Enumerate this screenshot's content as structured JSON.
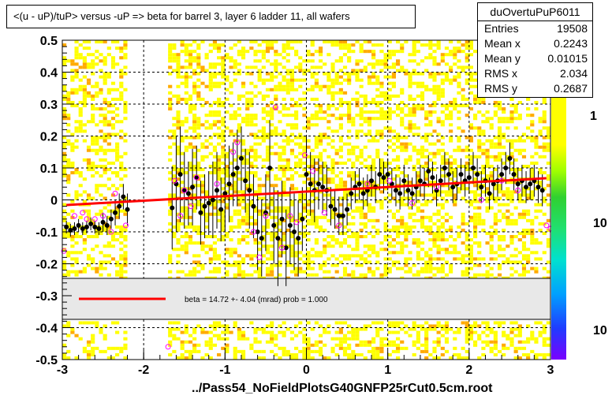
{
  "title": "<(u - uP)/tuP> versus  -uP => beta for barrel 3, layer 6 ladder 11, all wafers",
  "footer": "../Pass54_NoFieldPlotsG40GNFP25rCut0.5cm.root",
  "stats": {
    "name": "duOvertuPuP6011",
    "rows": [
      {
        "label": "Entries",
        "value": "19508"
      },
      {
        "label": "Mean x",
        "value": "0.2243"
      },
      {
        "label": "Mean y",
        "value": "0.01015"
      },
      {
        "label": "RMS x",
        "value": "2.034"
      },
      {
        "label": "RMS y",
        "value": "0.2687"
      }
    ]
  },
  "legend": {
    "text": "beta =   14.72 +-  4.04 (mrad) prob = 1.000"
  },
  "palette_labels": [
    "1",
    "10",
    "10"
  ],
  "colors": {
    "fit_line": "#ff0000",
    "open_marker": "#ff00ff",
    "hist_yellow": "#ffff00",
    "hist_orange": "#ffaa00"
  },
  "chart_data": {
    "type": "scatter",
    "xlim": [
      -3,
      3
    ],
    "ylim": [
      -0.5,
      0.5
    ],
    "x_ticks": [
      "-3",
      "-2",
      "-1",
      "0",
      "1",
      "2",
      "3"
    ],
    "y_ticks": [
      "-0.5",
      "-0.4",
      "-0.3",
      "-0.2",
      "-0.1",
      "0",
      "0.1",
      "0.2",
      "0.3",
      "0.4",
      "0.5"
    ],
    "grid": true,
    "fit_line": {
      "x": [
        -2.95,
        2.95
      ],
      "y": [
        -0.016,
        0.068
      ]
    },
    "profile_points": [
      {
        "x": -2.95,
        "y": -0.085,
        "err": 0.02
      },
      {
        "x": -2.9,
        "y": -0.095,
        "err": 0.02
      },
      {
        "x": -2.85,
        "y": -0.09,
        "err": 0.02
      },
      {
        "x": -2.8,
        "y": -0.08,
        "err": 0.02
      },
      {
        "x": -2.75,
        "y": -0.09,
        "err": 0.02
      },
      {
        "x": -2.7,
        "y": -0.085,
        "err": 0.02
      },
      {
        "x": -2.65,
        "y": -0.075,
        "err": 0.02
      },
      {
        "x": -2.6,
        "y": -0.085,
        "err": 0.02
      },
      {
        "x": -2.55,
        "y": -0.09,
        "err": 0.02
      },
      {
        "x": -2.5,
        "y": -0.07,
        "err": 0.03
      },
      {
        "x": -2.45,
        "y": -0.08,
        "err": 0.03
      },
      {
        "x": -2.4,
        "y": -0.06,
        "err": 0.03
      },
      {
        "x": -2.35,
        "y": -0.04,
        "err": 0.04
      },
      {
        "x": -2.3,
        "y": -0.02,
        "err": 0.04
      },
      {
        "x": -2.25,
        "y": 0.01,
        "err": 0.04
      },
      {
        "x": -2.2,
        "y": -0.03,
        "err": 0.05
      },
      {
        "x": -1.65,
        "y": -0.025,
        "err": 0.13
      },
      {
        "x": -1.6,
        "y": 0.05,
        "err": 0.15
      },
      {
        "x": -1.55,
        "y": 0.08,
        "err": 0.15
      },
      {
        "x": -1.5,
        "y": 0.03,
        "err": 0.12
      },
      {
        "x": -1.45,
        "y": 0.02,
        "err": 0.1
      },
      {
        "x": -1.4,
        "y": 0.04,
        "err": 0.12
      },
      {
        "x": -1.35,
        "y": 0.07,
        "err": 0.1
      },
      {
        "x": -1.3,
        "y": -0.04,
        "err": 0.1
      },
      {
        "x": -1.25,
        "y": -0.02,
        "err": 0.1
      },
      {
        "x": -1.2,
        "y": -0.01,
        "err": 0.1
      },
      {
        "x": -1.15,
        "y": 0.0,
        "err": 0.12
      },
      {
        "x": -1.1,
        "y": 0.03,
        "err": 0.12
      },
      {
        "x": -1.05,
        "y": -0.03,
        "err": 0.1
      },
      {
        "x": -1.0,
        "y": 0.02,
        "err": 0.12
      },
      {
        "x": -0.95,
        "y": 0.05,
        "err": 0.12
      },
      {
        "x": -0.9,
        "y": 0.08,
        "err": 0.1
      },
      {
        "x": -0.85,
        "y": 0.1,
        "err": 0.12
      },
      {
        "x": -0.8,
        "y": 0.13,
        "err": 0.1
      },
      {
        "x": -0.75,
        "y": 0.06,
        "err": 0.1
      },
      {
        "x": -0.7,
        "y": 0.03,
        "err": 0.12
      },
      {
        "x": -0.65,
        "y": -0.02,
        "err": 0.1
      },
      {
        "x": -0.6,
        "y": -0.1,
        "err": 0.12
      },
      {
        "x": -0.55,
        "y": -0.12,
        "err": 0.12
      },
      {
        "x": -0.5,
        "y": -0.04,
        "err": 0.12
      },
      {
        "x": -0.45,
        "y": 0.1,
        "err": 0.15
      },
      {
        "x": -0.4,
        "y": -0.08,
        "err": 0.12
      },
      {
        "x": -0.35,
        "y": -0.12,
        "err": 0.15
      },
      {
        "x": -0.3,
        "y": -0.06,
        "err": 0.12
      },
      {
        "x": -0.25,
        "y": -0.15,
        "err": 0.12
      },
      {
        "x": -0.2,
        "y": -0.08,
        "err": 0.12
      },
      {
        "x": -0.15,
        "y": -0.1,
        "err": 0.12
      },
      {
        "x": -0.1,
        "y": -0.12,
        "err": 0.12
      },
      {
        "x": -0.05,
        "y": -0.06,
        "err": 0.1
      },
      {
        "x": 0.0,
        "y": 0.08,
        "err": 0.12
      },
      {
        "x": 0.05,
        "y": 0.05,
        "err": 0.1
      },
      {
        "x": 0.1,
        "y": 0.03,
        "err": 0.1
      },
      {
        "x": 0.15,
        "y": 0.05,
        "err": 0.08
      },
      {
        "x": 0.2,
        "y": 0.04,
        "err": 0.08
      },
      {
        "x": 0.25,
        "y": 0.03,
        "err": 0.08
      },
      {
        "x": 0.3,
        "y": -0.02,
        "err": 0.06
      },
      {
        "x": 0.35,
        "y": -0.03,
        "err": 0.06
      },
      {
        "x": 0.4,
        "y": -0.05,
        "err": 0.06
      },
      {
        "x": 0.45,
        "y": -0.05,
        "err": 0.06
      },
      {
        "x": 0.5,
        "y": -0.03,
        "err": 0.05
      },
      {
        "x": 0.55,
        "y": 0.02,
        "err": 0.05
      },
      {
        "x": 0.6,
        "y": 0.04,
        "err": 0.05
      },
      {
        "x": 0.65,
        "y": 0.05,
        "err": 0.05
      },
      {
        "x": 0.7,
        "y": 0.02,
        "err": 0.05
      },
      {
        "x": 0.75,
        "y": 0.03,
        "err": 0.05
      },
      {
        "x": 0.8,
        "y": 0.06,
        "err": 0.05
      },
      {
        "x": 0.85,
        "y": 0.04,
        "err": 0.05
      },
      {
        "x": 0.9,
        "y": 0.08,
        "err": 0.05
      },
      {
        "x": 0.95,
        "y": 0.07,
        "err": 0.05
      },
      {
        "x": 1.0,
        "y": 0.08,
        "err": 0.05
      },
      {
        "x": 1.05,
        "y": 0.05,
        "err": 0.05
      },
      {
        "x": 1.1,
        "y": 0.03,
        "err": 0.05
      },
      {
        "x": 1.15,
        "y": 0.02,
        "err": 0.05
      },
      {
        "x": 1.2,
        "y": 0.06,
        "err": 0.05
      },
      {
        "x": 1.25,
        "y": 0.03,
        "err": 0.05
      },
      {
        "x": 1.3,
        "y": 0.02,
        "err": 0.05
      },
      {
        "x": 1.35,
        "y": 0.04,
        "err": 0.05
      },
      {
        "x": 1.4,
        "y": 0.06,
        "err": 0.05
      },
      {
        "x": 1.45,
        "y": 0.05,
        "err": 0.05
      },
      {
        "x": 1.5,
        "y": 0.09,
        "err": 0.05
      },
      {
        "x": 1.55,
        "y": 0.07,
        "err": 0.05
      },
      {
        "x": 1.6,
        "y": 0.03,
        "err": 0.05
      },
      {
        "x": 1.65,
        "y": 0.06,
        "err": 0.05
      },
      {
        "x": 1.7,
        "y": 0.1,
        "err": 0.05
      },
      {
        "x": 1.75,
        "y": 0.08,
        "err": 0.05
      },
      {
        "x": 1.8,
        "y": 0.04,
        "err": 0.05
      },
      {
        "x": 1.85,
        "y": 0.05,
        "err": 0.05
      },
      {
        "x": 1.9,
        "y": 0.08,
        "err": 0.05
      },
      {
        "x": 1.95,
        "y": 0.06,
        "err": 0.05
      },
      {
        "x": 2.0,
        "y": 0.07,
        "err": 0.05
      },
      {
        "x": 2.05,
        "y": 0.1,
        "err": 0.05
      },
      {
        "x": 2.1,
        "y": 0.08,
        "err": 0.05
      },
      {
        "x": 2.15,
        "y": 0.04,
        "err": 0.05
      },
      {
        "x": 2.2,
        "y": 0.06,
        "err": 0.05
      },
      {
        "x": 2.25,
        "y": 0.02,
        "err": 0.05
      },
      {
        "x": 2.3,
        "y": 0.05,
        "err": 0.05
      },
      {
        "x": 2.35,
        "y": 0.06,
        "err": 0.05
      },
      {
        "x": 2.4,
        "y": 0.08,
        "err": 0.05
      },
      {
        "x": 2.45,
        "y": 0.1,
        "err": 0.05
      },
      {
        "x": 2.5,
        "y": 0.13,
        "err": 0.05
      },
      {
        "x": 2.55,
        "y": 0.08,
        "err": 0.05
      },
      {
        "x": 2.6,
        "y": 0.05,
        "err": 0.05
      },
      {
        "x": 2.65,
        "y": 0.06,
        "err": 0.05
      },
      {
        "x": 2.7,
        "y": 0.04,
        "err": 0.05
      },
      {
        "x": 2.75,
        "y": 0.05,
        "err": 0.05
      },
      {
        "x": 2.8,
        "y": 0.06,
        "err": 0.05
      },
      {
        "x": 2.85,
        "y": 0.04,
        "err": 0.05
      },
      {
        "x": 2.9,
        "y": 0.03,
        "err": 0.05
      }
    ],
    "open_markers": [
      {
        "x": -2.98,
        "y": -0.16
      },
      {
        "x": -2.85,
        "y": -0.05
      },
      {
        "x": -2.75,
        "y": -0.04
      },
      {
        "x": -2.7,
        "y": -0.06
      },
      {
        "x": -2.6,
        "y": -0.06
      },
      {
        "x": -2.5,
        "y": -0.05
      },
      {
        "x": -2.4,
        "y": -0.1
      },
      {
        "x": -2.35,
        "y": 0.02
      },
      {
        "x": -2.22,
        "y": -0.08
      },
      {
        "x": -1.62,
        "y": 0.06
      },
      {
        "x": -1.55,
        "y": -0.05
      },
      {
        "x": -1.5,
        "y": 0.03
      },
      {
        "x": -1.42,
        "y": -0.02
      },
      {
        "x": -1.35,
        "y": 0.07
      },
      {
        "x": -1.1,
        "y": 0.05
      },
      {
        "x": -0.9,
        "y": 0.15
      },
      {
        "x": -0.85,
        "y": 0.18
      },
      {
        "x": -0.65,
        "y": -0.1
      },
      {
        "x": -0.58,
        "y": -0.18
      },
      {
        "x": -0.5,
        "y": -0.05
      },
      {
        "x": -0.38,
        "y": 0.29
      },
      {
        "x": -0.3,
        "y": -0.15
      },
      {
        "x": -0.2,
        "y": -0.05
      },
      {
        "x": -0.12,
        "y": -0.07
      },
      {
        "x": -0.02,
        "y": 0.14
      },
      {
        "x": 0.08,
        "y": 0.09
      },
      {
        "x": 0.22,
        "y": -0.04
      },
      {
        "x": 0.4,
        "y": -0.08
      },
      {
        "x": 0.75,
        "y": 0.05
      },
      {
        "x": 1.02,
        "y": 0.06
      },
      {
        "x": 1.3,
        "y": -0.01
      },
      {
        "x": 1.6,
        "y": 0.04
      },
      {
        "x": 2.15,
        "y": 0.0
      },
      {
        "x": 2.4,
        "y": 0.06
      },
      {
        "x": 2.6,
        "y": 0.03
      },
      {
        "x": 2.95,
        "y": -0.08
      },
      {
        "x": 3.0,
        "y": -0.09
      },
      {
        "x": -1.7,
        "y": -0.46
      }
    ]
  }
}
